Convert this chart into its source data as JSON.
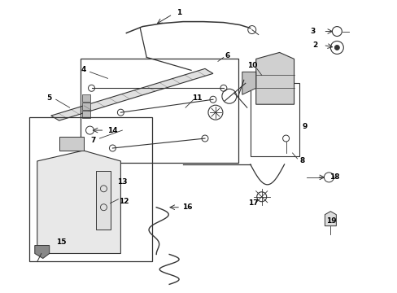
{
  "bg_color": "#ffffff",
  "line_color": "#333333",
  "label_color": "#000000",
  "figsize": [
    4.89,
    3.6
  ],
  "dpi": 100,
  "lw_main": 0.9,
  "lw_thin": 0.6,
  "fs_label": 6.5
}
